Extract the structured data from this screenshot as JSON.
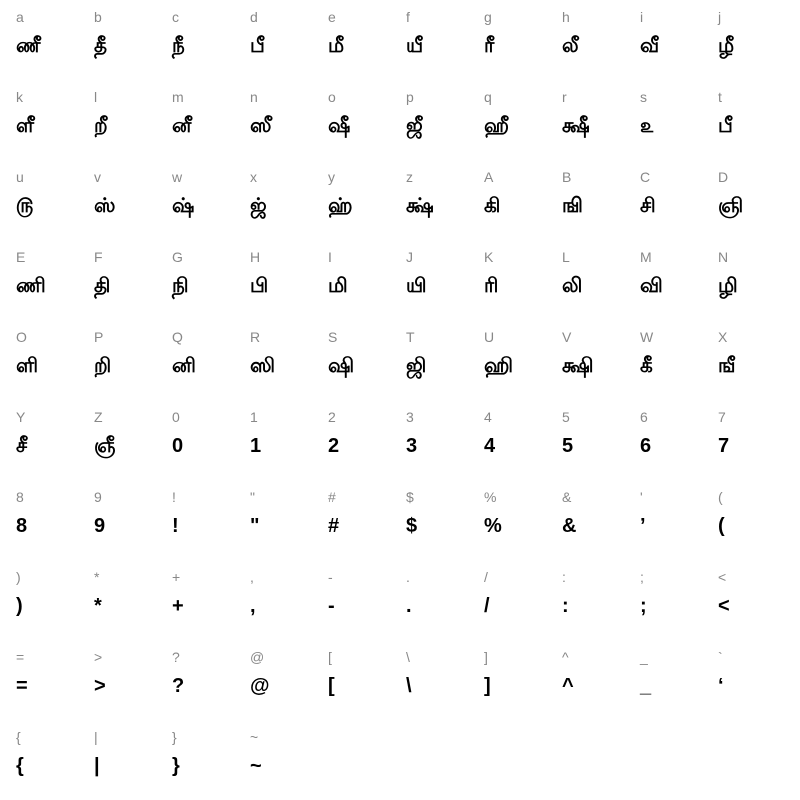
{
  "font_map": {
    "key_color": "#888888",
    "glyph_color": "#000000",
    "background_color": "#ffffff",
    "columns": 10,
    "key_fontsize": 14,
    "glyph_fontsize": 20,
    "glyph_fontweight": 900,
    "cells": [
      {
        "key": "a",
        "glyph": "ணீ"
      },
      {
        "key": "b",
        "glyph": "தீ"
      },
      {
        "key": "c",
        "glyph": "நீ"
      },
      {
        "key": "d",
        "glyph": "பீ"
      },
      {
        "key": "e",
        "glyph": "மீ"
      },
      {
        "key": "f",
        "glyph": "யீ"
      },
      {
        "key": "g",
        "glyph": "ரீ"
      },
      {
        "key": "h",
        "glyph": "லீ"
      },
      {
        "key": "i",
        "glyph": "வீ"
      },
      {
        "key": "j",
        "glyph": "ழீ"
      },
      {
        "key": "k",
        "glyph": "ளீ"
      },
      {
        "key": "l",
        "glyph": "றீ"
      },
      {
        "key": "m",
        "glyph": "னீ"
      },
      {
        "key": "n",
        "glyph": "ஸீ"
      },
      {
        "key": "o",
        "glyph": "ஷீ"
      },
      {
        "key": "p",
        "glyph": "ஜீ"
      },
      {
        "key": "q",
        "glyph": "ஹீ"
      },
      {
        "key": "r",
        "glyph": "க்ஷீ"
      },
      {
        "key": "s",
        "glyph": "௨"
      },
      {
        "key": "t",
        "glyph": "பீ"
      },
      {
        "key": "u",
        "glyph": "௫"
      },
      {
        "key": "v",
        "glyph": "ஸ்"
      },
      {
        "key": "w",
        "glyph": "ஷ்"
      },
      {
        "key": "x",
        "glyph": "ஜ்"
      },
      {
        "key": "y",
        "glyph": "ஹ்"
      },
      {
        "key": "z",
        "glyph": "க்ஷ்"
      },
      {
        "key": "A",
        "glyph": "கி"
      },
      {
        "key": "B",
        "glyph": "ஙி"
      },
      {
        "key": "C",
        "glyph": "சி"
      },
      {
        "key": "D",
        "glyph": "ஞி"
      },
      {
        "key": "E",
        "glyph": "ணி"
      },
      {
        "key": "F",
        "glyph": "தி"
      },
      {
        "key": "G",
        "glyph": "நி"
      },
      {
        "key": "H",
        "glyph": "பி"
      },
      {
        "key": "I",
        "glyph": "மி"
      },
      {
        "key": "J",
        "glyph": "யி"
      },
      {
        "key": "K",
        "glyph": "ரி"
      },
      {
        "key": "L",
        "glyph": "லி"
      },
      {
        "key": "M",
        "glyph": "வி"
      },
      {
        "key": "N",
        "glyph": "ழி"
      },
      {
        "key": "O",
        "glyph": "ளி"
      },
      {
        "key": "P",
        "glyph": "றி"
      },
      {
        "key": "Q",
        "glyph": "னி"
      },
      {
        "key": "R",
        "glyph": "ஸி"
      },
      {
        "key": "S",
        "glyph": "ஷி"
      },
      {
        "key": "T",
        "glyph": "ஜி"
      },
      {
        "key": "U",
        "glyph": "ஹி"
      },
      {
        "key": "V",
        "glyph": "க்ஷி"
      },
      {
        "key": "W",
        "glyph": "கீ"
      },
      {
        "key": "X",
        "glyph": "ஙீ"
      },
      {
        "key": "Y",
        "glyph": "சீ"
      },
      {
        "key": "Z",
        "glyph": "ஞீ"
      },
      {
        "key": "0",
        "glyph": "0"
      },
      {
        "key": "1",
        "glyph": "1"
      },
      {
        "key": "2",
        "glyph": "2"
      },
      {
        "key": "3",
        "glyph": "3"
      },
      {
        "key": "4",
        "glyph": "4"
      },
      {
        "key": "5",
        "glyph": "5"
      },
      {
        "key": "6",
        "glyph": "6"
      },
      {
        "key": "7",
        "glyph": "7"
      },
      {
        "key": "8",
        "glyph": "8"
      },
      {
        "key": "9",
        "glyph": "9"
      },
      {
        "key": "!",
        "glyph": "!"
      },
      {
        "key": "\"",
        "glyph": "\""
      },
      {
        "key": "#",
        "glyph": "#"
      },
      {
        "key": "$",
        "glyph": "$"
      },
      {
        "key": "%",
        "glyph": "%"
      },
      {
        "key": "&",
        "glyph": "&"
      },
      {
        "key": "'",
        "glyph": "’"
      },
      {
        "key": "(",
        "glyph": "("
      },
      {
        "key": ")",
        "glyph": ")"
      },
      {
        "key": "*",
        "glyph": "*"
      },
      {
        "key": "+",
        "glyph": "+"
      },
      {
        "key": ",",
        "glyph": ","
      },
      {
        "key": "-",
        "glyph": "-"
      },
      {
        "key": ".",
        "glyph": "."
      },
      {
        "key": "/",
        "glyph": "/"
      },
      {
        "key": ":",
        "glyph": ":"
      },
      {
        "key": ";",
        "glyph": ";"
      },
      {
        "key": "<",
        "glyph": "<"
      },
      {
        "key": "=",
        "glyph": "="
      },
      {
        "key": ">",
        "glyph": ">"
      },
      {
        "key": "?",
        "glyph": "?"
      },
      {
        "key": "@",
        "glyph": "@"
      },
      {
        "key": "[",
        "glyph": "["
      },
      {
        "key": "\\",
        "glyph": "\\"
      },
      {
        "key": "]",
        "glyph": "]"
      },
      {
        "key": "^",
        "glyph": "^"
      },
      {
        "key": "_",
        "glyph": "_"
      },
      {
        "key": "`",
        "glyph": "‘"
      },
      {
        "key": "{",
        "glyph": "{"
      },
      {
        "key": "|",
        "glyph": "|"
      },
      {
        "key": "}",
        "glyph": "}"
      },
      {
        "key": "~",
        "glyph": "~"
      }
    ]
  }
}
